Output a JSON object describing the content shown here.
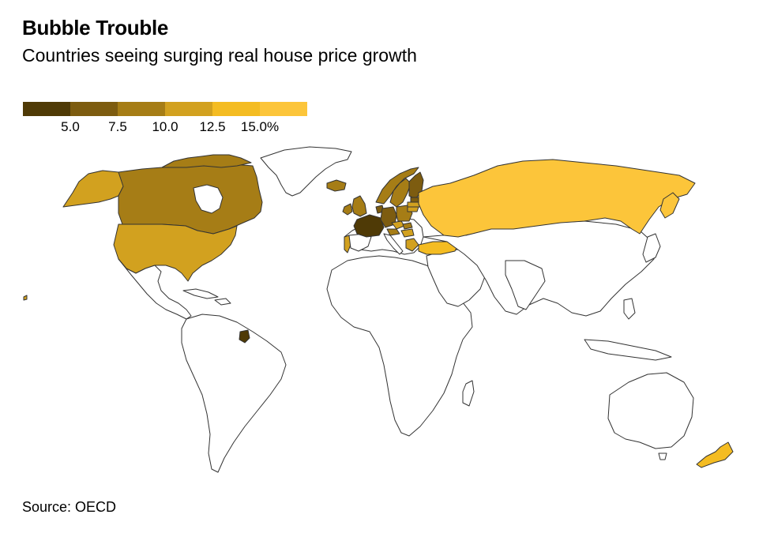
{
  "title": "Bubble Trouble",
  "subtitle": "Countries seeing surging real house price growth",
  "legend": {
    "colors": [
      "#4f3a06",
      "#7d5c10",
      "#a67d16",
      "#d2a11f",
      "#f4bc22",
      "#fcc53a"
    ],
    "ticks": [
      "5.0",
      "7.5",
      "10.0",
      "12.5",
      "15.0%"
    ]
  },
  "source": "Source: OECD",
  "map_colors": {
    "no_data": "#ffffff",
    "border": "#333333"
  },
  "countries": [
    {
      "name": "United States",
      "color": "#d2a11f"
    },
    {
      "name": "Canada",
      "color": "#a67d16"
    },
    {
      "name": "Alaska",
      "color": "#d2a11f"
    },
    {
      "name": "Russia",
      "color": "#fcc53a"
    },
    {
      "name": "New Zealand",
      "color": "#f4bc22"
    },
    {
      "name": "France",
      "color": "#4f3a06"
    },
    {
      "name": "United Kingdom",
      "color": "#a67d16"
    },
    {
      "name": "Ireland",
      "color": "#a67d16"
    },
    {
      "name": "Germany",
      "color": "#7d5c10"
    },
    {
      "name": "Norway",
      "color": "#a67d16"
    },
    {
      "name": "Sweden",
      "color": "#a67d16"
    },
    {
      "name": "Finland",
      "color": "#7d5c10"
    },
    {
      "name": "Iceland",
      "color": "#a67d16"
    },
    {
      "name": "Portugal",
      "color": "#d2a11f"
    },
    {
      "name": "Turkey",
      "color": "#f4bc22"
    },
    {
      "name": "French Guiana",
      "color": "#4f3a06"
    },
    {
      "name": "Netherlands",
      "color": "#7d5c10"
    },
    {
      "name": "Poland",
      "color": "#a67d16"
    },
    {
      "name": "Czechia",
      "color": "#d2a11f"
    },
    {
      "name": "Austria",
      "color": "#a67d16"
    },
    {
      "name": "Estonia",
      "color": "#7d5c10"
    },
    {
      "name": "Latvia",
      "color": "#d2a11f"
    },
    {
      "name": "Lithuania",
      "color": "#d2a11f"
    },
    {
      "name": "Hungary",
      "color": "#d2a11f"
    },
    {
      "name": "Slovakia",
      "color": "#a67d16"
    }
  ]
}
